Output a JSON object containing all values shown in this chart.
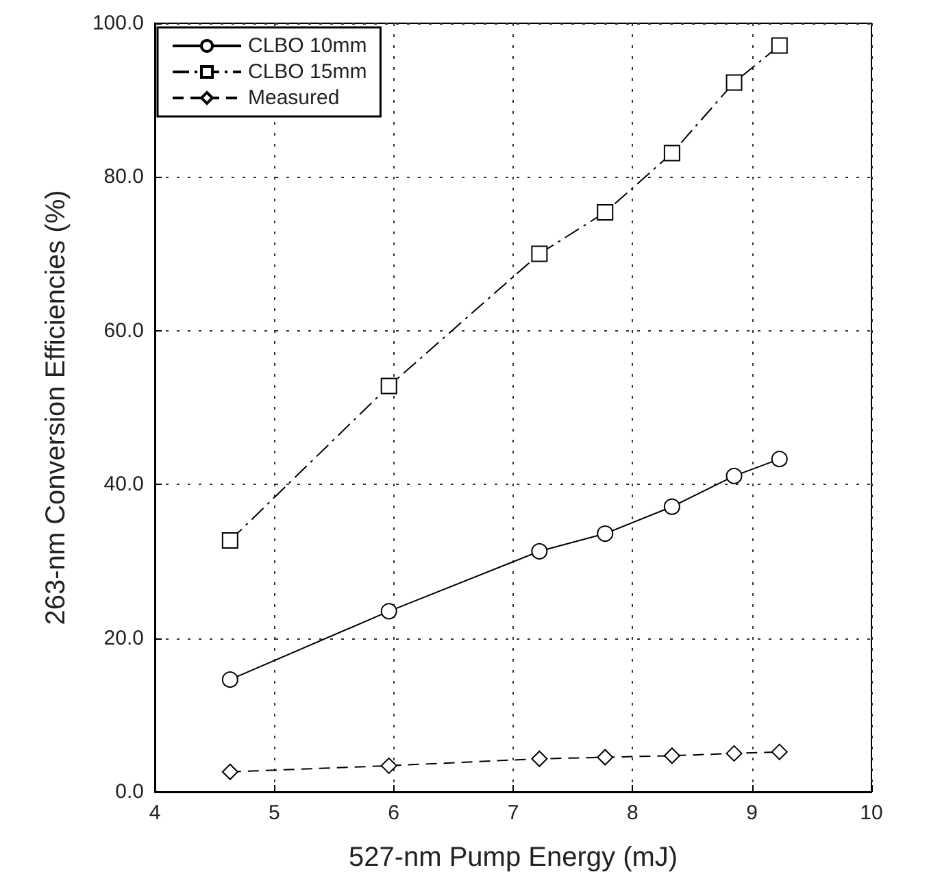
{
  "chart_data": {
    "type": "line",
    "xlabel": "527-nm Pump Energy (mJ)",
    "ylabel": "263-nm Conversion Efficiencies (%)",
    "x": [
      4.63,
      5.96,
      7.22,
      7.77,
      8.33,
      8.85,
      9.23
    ],
    "series": [
      {
        "name": "CLBO 10mm",
        "color": "#000000",
        "marker": "circle",
        "line_style": "solid",
        "values": [
          14.6,
          23.5,
          31.3,
          33.6,
          37.1,
          41.1,
          43.3
        ]
      },
      {
        "name": "CLBO 15mm",
        "color": "#000000",
        "marker": "square",
        "line_style": "dashdot",
        "values": [
          32.7,
          52.8,
          70.0,
          75.4,
          83.1,
          92.3,
          97.1
        ]
      },
      {
        "name": "Measured",
        "color": "#000000",
        "marker": "diamond",
        "line_style": "dashed",
        "values": [
          2.6,
          3.4,
          4.3,
          4.5,
          4.7,
          5.0,
          5.2
        ]
      }
    ],
    "xlim": [
      4,
      10
    ],
    "xticks": [
      4,
      5,
      6,
      7,
      8,
      9,
      10
    ],
    "ylim": [
      0,
      100
    ],
    "yticks": [
      {
        "value": 0,
        "label": "0.0"
      },
      {
        "value": 20,
        "label": "20.0"
      },
      {
        "value": 40,
        "label": "40.0"
      },
      {
        "value": 60,
        "label": "60.0"
      },
      {
        "value": 80,
        "label": "80.0"
      },
      {
        "value": 100,
        "label": "100.0"
      }
    ],
    "grid": true,
    "legend": "top left"
  }
}
